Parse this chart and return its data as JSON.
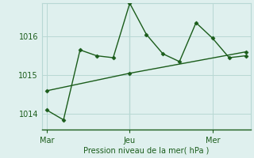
{
  "background_color": "#dff0ee",
  "grid_color": "#b8d8d4",
  "line_color": "#1a5c1a",
  "marker_color": "#1a5c1a",
  "text_color": "#1a5c1a",
  "xlabel": "Pression niveau de la mer( hPa )",
  "yticks": [
    1014,
    1015,
    1016
  ],
  "ylim": [
    1013.6,
    1016.85
  ],
  "xlim": [
    -0.3,
    12.3
  ],
  "xtick_positions": [
    0,
    5,
    10
  ],
  "xtick_labels": [
    "Mar",
    "Jeu",
    "Mer"
  ],
  "line1_x": [
    0,
    1,
    2,
    3,
    4,
    5,
    6,
    7,
    8,
    9,
    10,
    11,
    12
  ],
  "line1_y": [
    1014.1,
    1013.85,
    1015.65,
    1015.5,
    1015.45,
    1016.85,
    1016.05,
    1015.55,
    1015.35,
    1016.35,
    1015.95,
    1015.45,
    1015.5
  ],
  "line2_x": [
    0,
    5,
    12
  ],
  "line2_y": [
    1014.6,
    1015.05,
    1015.6
  ],
  "vline_x": 5
}
